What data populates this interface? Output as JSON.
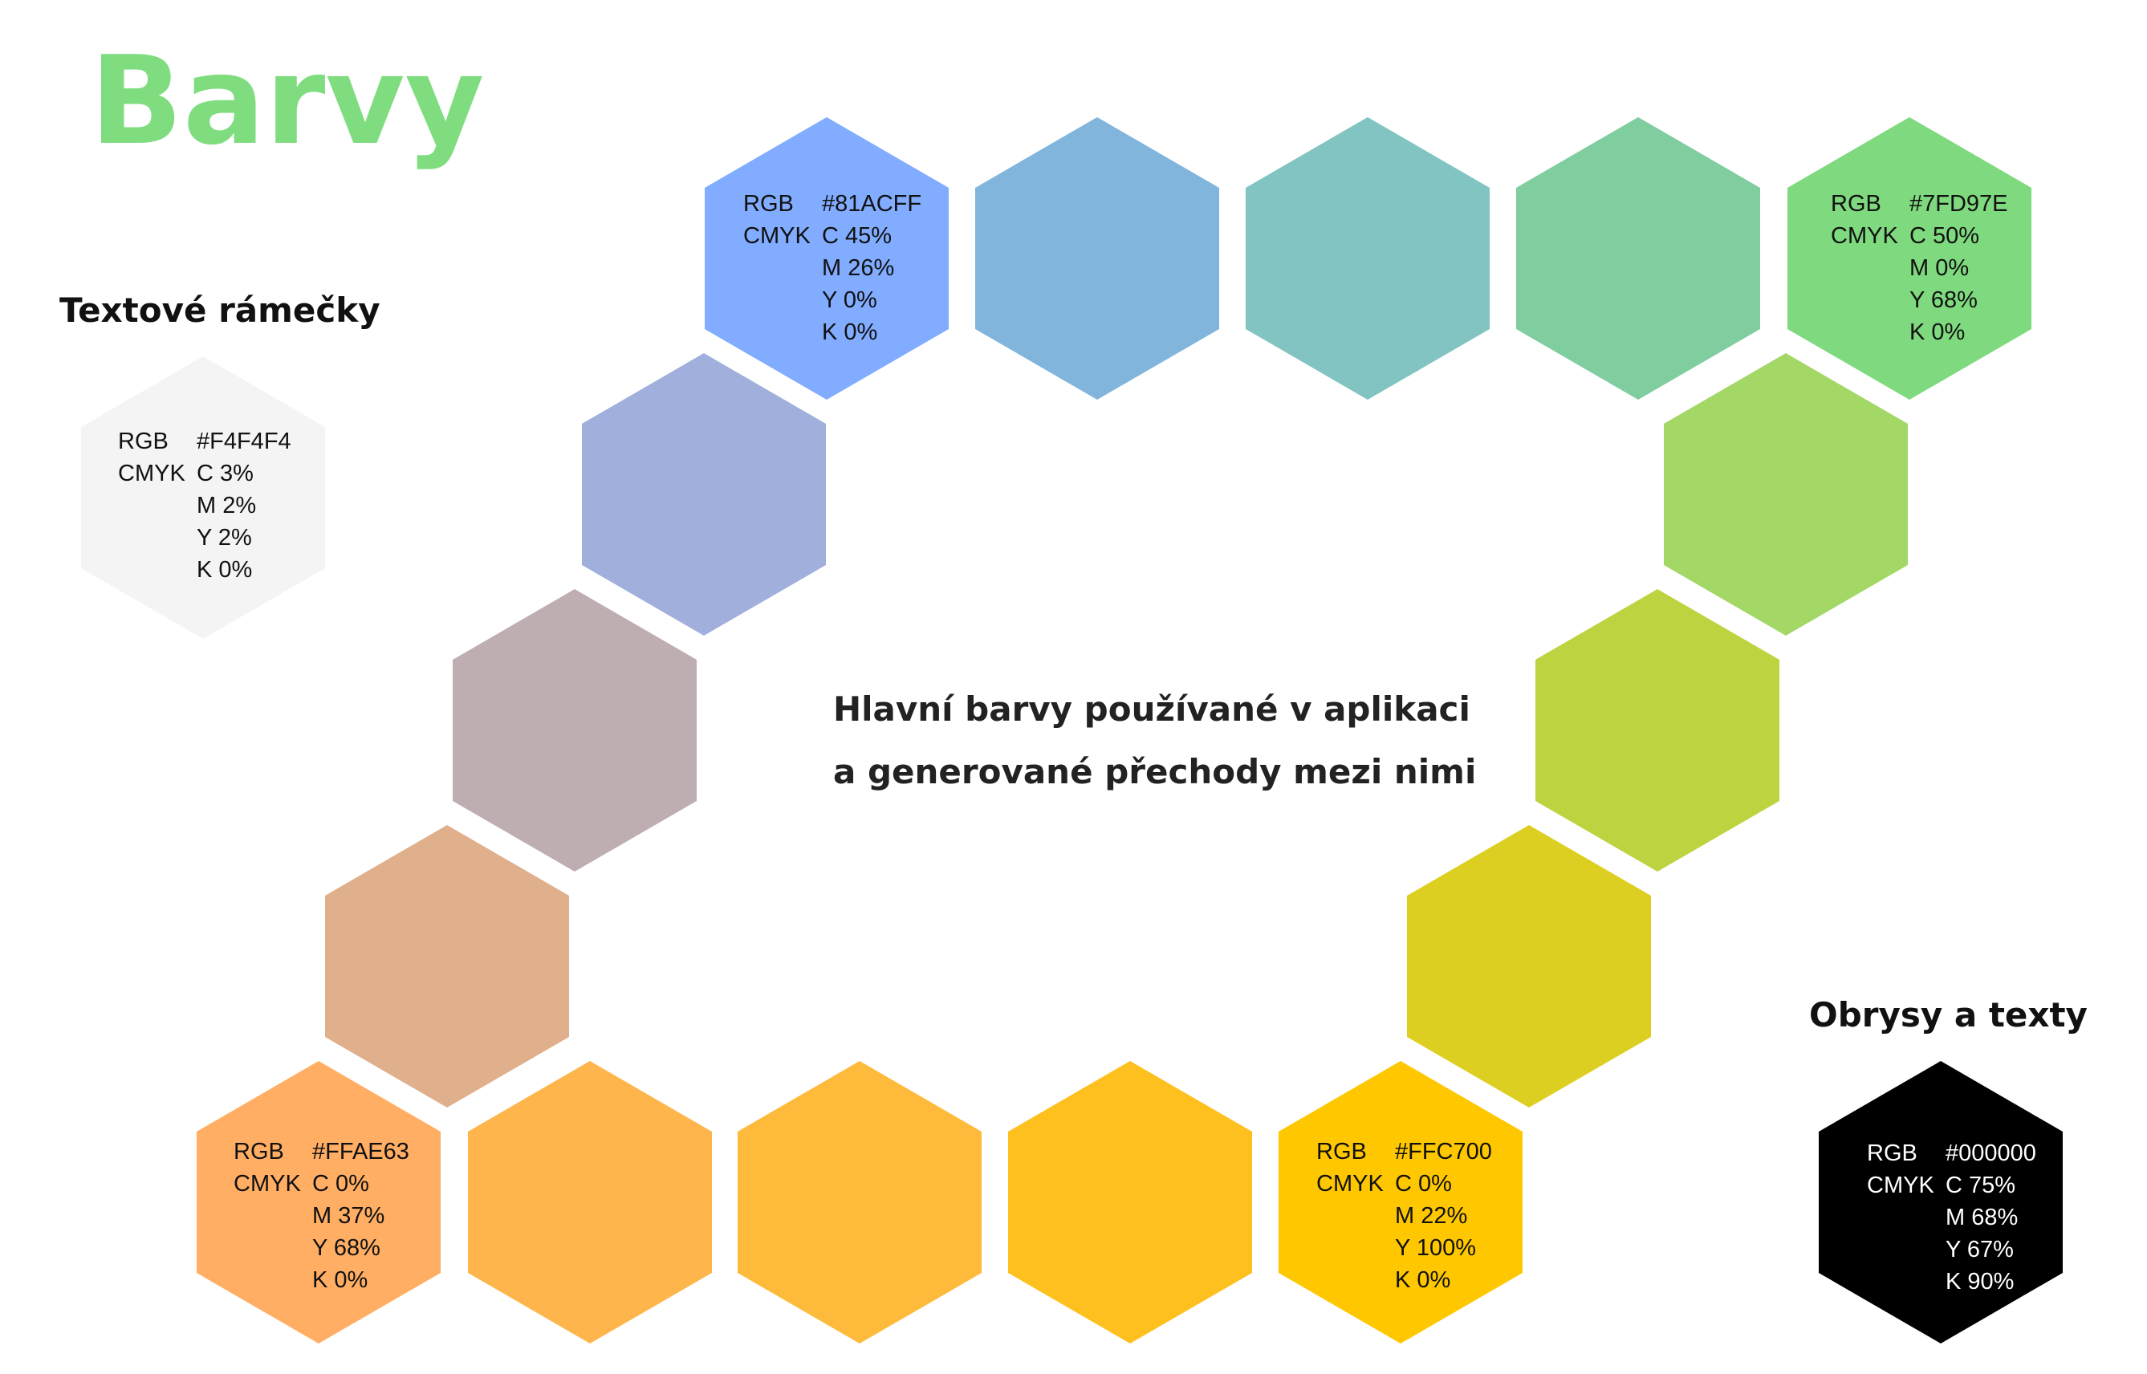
{
  "title": "Barvy",
  "headings": {
    "text_boxes": "Textové rámečky",
    "outlines": "Obrysy a texty"
  },
  "center_text": {
    "line1": "Hlavní barvy používané v aplikaci",
    "line2": "a generované přechody mezi nimi"
  },
  "swatches": {
    "blue": {
      "rgb_label": "RGB",
      "cmyk_label": "CMYK",
      "hex": "#81ACFF",
      "c": "C 45%",
      "m": "M 26%",
      "y": "Y 0%",
      "k": "K 0%"
    },
    "green": {
      "rgb_label": "RGB",
      "cmyk_label": "CMYK",
      "hex": "#7FD97E",
      "c": "C 50%",
      "m": "M 0%",
      "y": "Y 68%",
      "k": "K 0%"
    },
    "gray": {
      "rgb_label": "RGB",
      "cmyk_label": "CMYK",
      "hex": "#F4F4F4",
      "c": "C 3%",
      "m": "M 2%",
      "y": "Y 2%",
      "k": "K 0%"
    },
    "orange": {
      "rgb_label": "RGB",
      "cmyk_label": "CMYK",
      "hex": "#FFAE63",
      "c": "C 0%",
      "m": "M 37%",
      "y": "Y 68%",
      "k": "K 0%"
    },
    "yellow": {
      "rgb_label": "RGB",
      "cmyk_label": "CMYK",
      "hex": "#FFC700",
      "c": "C 0%",
      "m": "M 22%",
      "y": "Y 100%",
      "k": "K 0%"
    },
    "black": {
      "rgb_label": "RGB",
      "cmyk_label": "CMYK",
      "hex": "#000000",
      "c": "C 75%",
      "m": "M 68%",
      "y": "Y 67%",
      "k": "K 90%"
    }
  },
  "hex_colors": [
    "#81ACFF",
    "#81B5DC",
    "#81C4C1",
    "#80CDA0",
    "#7FD97E",
    "#A0AFDB",
    "#A3D766",
    "#BFAEB1",
    "#BFD341",
    "#E0AF8B",
    "#DDCF22",
    "#FFAE63",
    "#FEB54B",
    "#FEBA3A",
    "#FEC01E",
    "#FFC700",
    "#F4F4F4",
    "#000000"
  ]
}
